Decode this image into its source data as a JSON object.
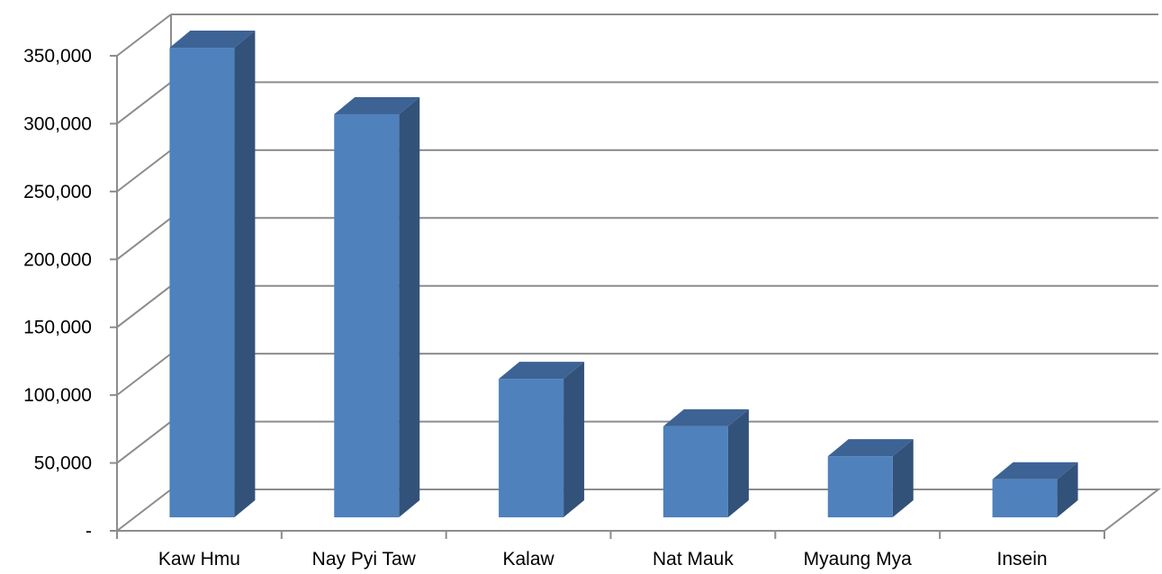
{
  "chart_data": {
    "type": "bar",
    "style": "3d-column",
    "categories": [
      "Kaw Hmu",
      "Nay Pyi Taw",
      "Kalaw",
      "Nat Mauk",
      "Myaung Mya",
      "Insein"
    ],
    "values": [
      346000,
      297000,
      102000,
      67000,
      45000,
      28000
    ],
    "ylim": [
      0,
      350000
    ],
    "yticks": [
      0,
      50000,
      100000,
      150000,
      200000,
      250000,
      300000,
      350000
    ],
    "ytick_labels": [
      "-",
      "50,000",
      "100,000",
      "150,000",
      "200,000",
      "250,000",
      "300,000",
      "350,000"
    ],
    "title": "",
    "xlabel": "",
    "ylabel": "",
    "grid": true,
    "legend": "none",
    "colors": {
      "bar_front": "#4f81bd",
      "bar_side": "#33527a",
      "bar_top": "#3d6394",
      "grid": "#8c8c8c",
      "text": "#000000"
    }
  }
}
